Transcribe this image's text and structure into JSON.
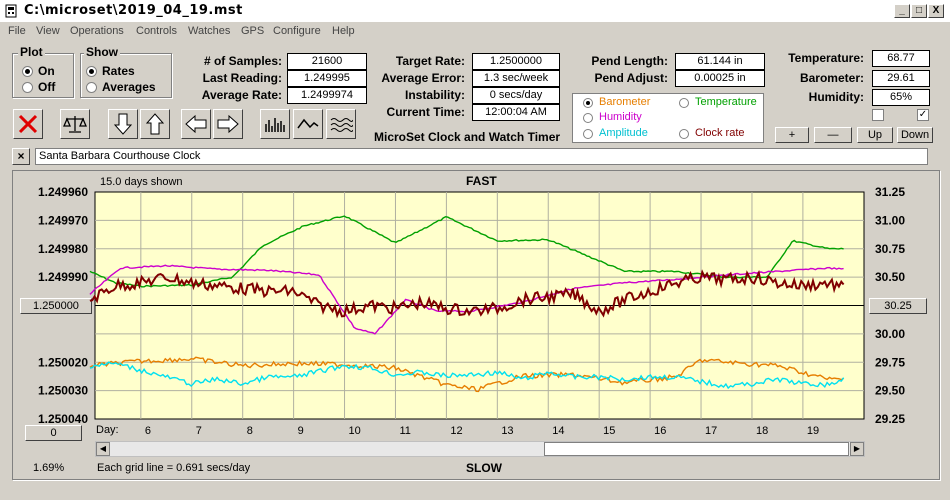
{
  "window": {
    "title": "C:\\microset\\2019_04_19.mst",
    "min_label": "_",
    "max_label": "□",
    "close_label": "X"
  },
  "menu": [
    "File",
    "View",
    "Operations",
    "Controls",
    "Watches",
    "GPS",
    "Configure",
    "Help"
  ],
  "plot": {
    "label": "Plot",
    "on": "On",
    "off": "Off",
    "selected": "On"
  },
  "show": {
    "label": "Show",
    "rates": "Rates",
    "averages": "Averages",
    "selected": "Rates"
  },
  "stats": {
    "samples_label": "# of Samples:",
    "samples": "21600",
    "last_label": "Last Reading:",
    "last": "1.249995",
    "avg_rate_label": "Average Rate:",
    "avg_rate": "1.2499974",
    "target_label": "Target Rate:",
    "target": "1.2500000",
    "avg_err_label": "Average Error:",
    "avg_err": "1.3 sec/week",
    "instab_label": "Instability:",
    "instab": "0 secs/day",
    "time_label": "Current Time:",
    "time": "12:00:04 AM",
    "app_name": "MicroSet Clock and Watch Timer",
    "pend_len_label": "Pend Length:",
    "pend_len": "61.144 in",
    "pend_adj_label": "Pend Adjust:",
    "pend_adj": "0.00025 in",
    "temp_label": "Temperature:",
    "temp": "68.77",
    "baro_label": "Barometer:",
    "baro": "29.61",
    "humid_label": "Humidity:",
    "humid": "65%"
  },
  "sensor_select": {
    "selected": "Barometer",
    "items": [
      {
        "label": "Barometer",
        "color": "#e67e00"
      },
      {
        "label": "Temperature",
        "color": "#00a000"
      },
      {
        "label": "Humidity",
        "color": "#cc00cc"
      },
      {
        "label": "Amplitude",
        "color": "#00c0d0"
      },
      {
        "label": "Clock rate",
        "color": "#800000"
      }
    ]
  },
  "small_buttons": {
    "plus": "+",
    "minus": "—",
    "up": "Up",
    "down": "Down"
  },
  "checkboxes": {
    "left": false,
    "right": true
  },
  "clock_name": "Santa Barbara Courthouse Clock",
  "chart_data": {
    "type": "line",
    "days_shown": "15.0 days shown",
    "top_label": "FAST",
    "bottom_label": "SLOW",
    "grid_note": "Each grid line = 0.691 secs/day",
    "left_percent": "1.69%",
    "left_button": "1.250000",
    "right_button": "30.25",
    "zero_button": "0",
    "x_prefix": "Day:",
    "y_left_ticks": [
      "1.249960",
      "1.249970",
      "1.249980",
      "1.249990",
      "1.250000",
      "1.250020",
      "1.250030",
      "1.250040"
    ],
    "y_right_ticks": [
      "31.25",
      "31.00",
      "30.75",
      "30.50",
      "30.25",
      "30.00",
      "29.75",
      "29.50",
      "29.25"
    ],
    "x_ticks": [
      "6",
      "7",
      "8",
      "9",
      "10",
      "11",
      "12",
      "13",
      "14",
      "15",
      "16",
      "17",
      "18",
      "19"
    ],
    "series": [
      {
        "name": "Temperature",
        "color": "#00a000",
        "x": [
          5,
          5.5,
          6,
          7,
          7.8,
          8.4,
          9.2,
          10,
          11,
          12,
          13,
          14,
          15.5,
          16.5,
          17.5,
          18.3,
          18.8,
          19.5,
          19.8
        ],
        "values": [
          30.55,
          30.45,
          30.42,
          30.43,
          30.5,
          30.78,
          30.95,
          31.04,
          30.8,
          31.03,
          30.82,
          30.83,
          30.55,
          30.55,
          30.5,
          30.5,
          30.82,
          30.75,
          30.75
        ]
      },
      {
        "name": "Humidity",
        "color": "#cc00cc",
        "x": [
          5,
          5.6,
          6.5,
          7.5,
          8.5,
          9.5,
          10.2,
          10.6,
          11.2,
          11.8,
          12.5,
          13.5,
          14.5,
          15.5,
          16.5,
          17.5,
          18.5,
          19.5,
          19.8
        ],
        "values": [
          30.35,
          30.58,
          30.6,
          30.57,
          30.56,
          30.52,
          30.05,
          30.0,
          30.3,
          30.2,
          30.2,
          30.28,
          30.4,
          30.45,
          30.48,
          30.52,
          30.55,
          30.58,
          30.57
        ]
      },
      {
        "name": "Clock rate",
        "color": "#800000",
        "x": [
          5,
          5.5,
          6,
          6.5,
          7,
          7.5,
          8,
          8.5,
          9,
          9.5,
          10,
          10.5,
          11,
          11.5,
          12,
          12.5,
          13,
          13.5,
          14,
          14.5,
          15,
          15.5,
          16,
          16.5,
          17,
          17.5,
          18,
          18.5,
          19,
          19.5,
          19.8
        ],
        "values": [
          1.249998,
          1.249993,
          1.249992,
          1.24999,
          1.249992,
          1.249993,
          1.249994,
          1.249995,
          1.249995,
          1.25,
          1.250002,
          1.25,
          1.250001,
          1.249999,
          1.250001,
          1.250002,
          1.250001,
          1.249998,
          1.249997,
          1.249996,
          1.250002,
          1.249998,
          1.249995,
          1.249992,
          1.24999,
          1.249991,
          1.24999,
          1.249992,
          1.249993,
          1.249992,
          1.249994
        ]
      },
      {
        "name": "Barometer",
        "color": "#e67e00",
        "x": [
          5,
          6,
          7,
          8,
          9,
          10,
          11,
          12,
          12.6,
          13.5,
          14.5,
          15.5,
          16.5,
          17,
          17.8,
          18.5,
          19.5,
          19.8
        ],
        "values": [
          29.72,
          29.76,
          29.78,
          29.72,
          29.74,
          29.73,
          29.7,
          29.55,
          29.51,
          29.63,
          29.64,
          29.57,
          29.62,
          29.77,
          29.74,
          29.72,
          29.6,
          29.6
        ]
      },
      {
        "name": "Amplitude",
        "color": "#00e0f0",
        "x": [
          5,
          5.5,
          6,
          6.5,
          7,
          7.5,
          8,
          8.5,
          9,
          9.5,
          10,
          10.5,
          11,
          11.5,
          12,
          12.5,
          13,
          13.5,
          14,
          14.5,
          15,
          15.5,
          16,
          16.5,
          17,
          17.5,
          18,
          18.5,
          19,
          19.5,
          19.8
        ],
        "values": [
          29.72,
          29.74,
          29.68,
          29.62,
          29.56,
          29.6,
          29.56,
          29.62,
          29.62,
          29.67,
          29.72,
          29.7,
          29.64,
          29.66,
          29.63,
          29.64,
          29.66,
          29.6,
          29.66,
          29.62,
          29.62,
          29.6,
          29.62,
          29.62,
          29.58,
          29.54,
          29.56,
          29.6,
          29.56,
          29.55,
          29.6
        ]
      }
    ]
  }
}
